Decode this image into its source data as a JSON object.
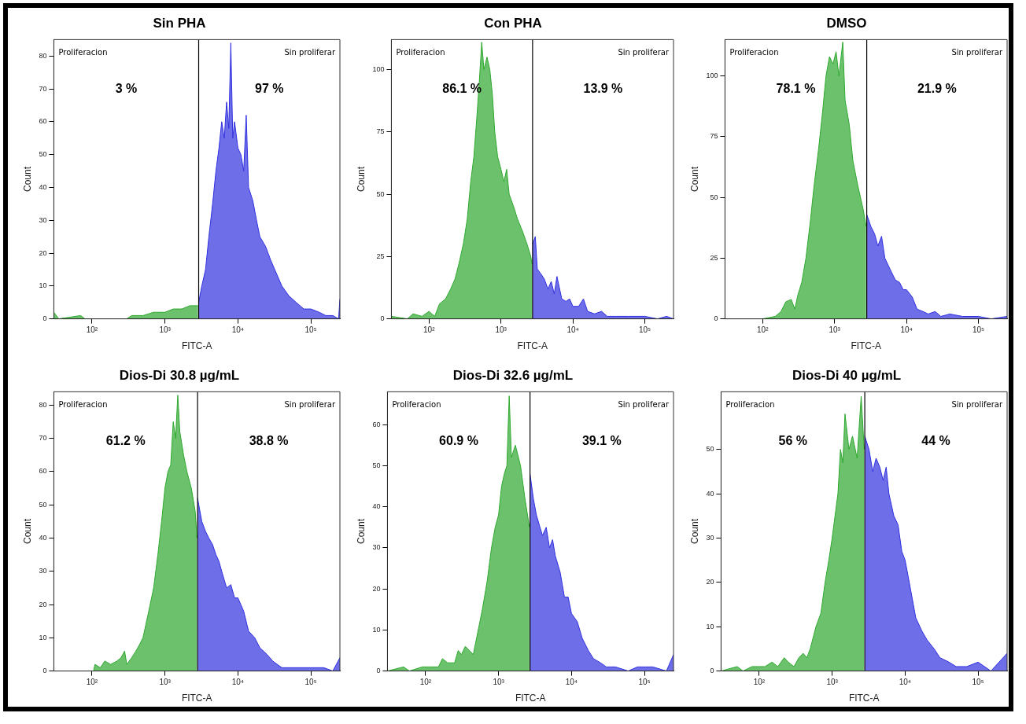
{
  "chart_data": [
    {
      "type": "area",
      "title": "Sin PHA",
      "xlabel": "FITC-A",
      "ylabel": "Count",
      "log": "x",
      "grid": false,
      "legend": false,
      "xlim": [
        30,
        250000
      ],
      "ylim": [
        0,
        85
      ],
      "xticks": [
        {
          "value": 100,
          "label": "10²"
        },
        {
          "value": 1000,
          "label": "10³"
        },
        {
          "value": 10000,
          "label": "10⁴"
        },
        {
          "value": 100000,
          "label": "10⁵"
        }
      ],
      "yticks": [
        0,
        10,
        20,
        30,
        40,
        50,
        60,
        70,
        80
      ],
      "ref_lines": [
        {
          "axis": "x",
          "value": 2900,
          "color": "#000000"
        }
      ],
      "annotations": [
        "Proliferacion",
        "Sin proliferar",
        "3 %",
        "97 %"
      ],
      "series": [
        {
          "color": "#2ea82e",
          "x": [
            30,
            35,
            70,
            80,
            300,
            350,
            500,
            700,
            1000,
            1300,
            1700,
            2200,
            2850
          ],
          "values": [
            2,
            0,
            1,
            0,
            0,
            1,
            1,
            2,
            2,
            3,
            3,
            4,
            4
          ]
        },
        {
          "color": "#3030e0",
          "x": [
            2900,
            3200,
            3600,
            4000,
            4500,
            5000,
            5500,
            6000,
            6500,
            7000,
            7500,
            8000,
            8500,
            9000,
            10000,
            11000,
            12000,
            13000,
            14000,
            16000,
            18000,
            20000,
            24000,
            28000,
            32000,
            40000,
            50000,
            63000,
            80000,
            100000,
            130000,
            160000,
            200000,
            240000,
            250000
          ],
          "values": [
            5,
            10,
            15,
            25,
            35,
            45,
            52,
            60,
            55,
            66,
            58,
            84,
            55,
            60,
            52,
            50,
            45,
            62,
            40,
            36,
            30,
            25,
            22,
            18,
            15,
            10,
            7,
            5,
            3,
            3,
            2,
            1,
            1,
            0,
            6
          ]
        }
      ]
    },
    {
      "type": "area",
      "title": "Con PHA",
      "xlabel": "FITC-A",
      "ylabel": "Count",
      "log": "x",
      "grid": false,
      "legend": false,
      "xlim": [
        30,
        250000
      ],
      "ylim": [
        0,
        112
      ],
      "xticks": [
        {
          "value": 100,
          "label": "10²"
        },
        {
          "value": 1000,
          "label": "10³"
        },
        {
          "value": 10000,
          "label": "10⁴"
        },
        {
          "value": 100000,
          "label": "10⁵"
        }
      ],
      "yticks": [
        0,
        25,
        50,
        75,
        100
      ],
      "ref_lines": [
        {
          "axis": "x",
          "value": 2750,
          "color": "#000000"
        }
      ],
      "annotations": [
        "Proliferacion",
        "Sin proliferar",
        "86.1 %",
        "13.9 %"
      ],
      "series": [
        {
          "color": "#2ea82e",
          "x": [
            30,
            50,
            60,
            80,
            100,
            120,
            140,
            170,
            200,
            230,
            260,
            300,
            340,
            380,
            420,
            460,
            500,
            540,
            580,
            640,
            700,
            760,
            820,
            900,
            1000,
            1100,
            1200,
            1300,
            1500,
            1700,
            2000,
            2300,
            2600,
            2700
          ],
          "values": [
            1,
            0,
            2,
            1,
            3,
            1,
            6,
            8,
            12,
            16,
            22,
            30,
            40,
            55,
            65,
            80,
            95,
            111,
            100,
            105,
            100,
            90,
            75,
            65,
            60,
            55,
            60,
            50,
            45,
            40,
            35,
            30,
            25,
            22
          ]
        },
        {
          "color": "#3030e0",
          "x": [
            2750,
            3000,
            3200,
            3600,
            4000,
            4500,
            5000,
            5500,
            6000,
            7000,
            8000,
            9000,
            10000,
            12000,
            14000,
            16000,
            20000,
            25000,
            30000,
            40000,
            60000,
            100000,
            150000,
            200000,
            250000
          ],
          "values": [
            30,
            33,
            20,
            18,
            16,
            12,
            15,
            10,
            17,
            8,
            7,
            8,
            5,
            5,
            8,
            3,
            2,
            3,
            1,
            1,
            1,
            1,
            0,
            1,
            0
          ]
        }
      ]
    },
    {
      "type": "area",
      "title": "DMSO",
      "xlabel": "FITC-A",
      "ylabel": "Count",
      "log": "x",
      "grid": false,
      "legend": false,
      "xlim": [
        30,
        250000
      ],
      "ylim": [
        0,
        115
      ],
      "xticks": [
        {
          "value": 100,
          "label": "10²"
        },
        {
          "value": 1000,
          "label": "10³"
        },
        {
          "value": 10000,
          "label": "10⁴"
        },
        {
          "value": 100000,
          "label": "10⁵"
        }
      ],
      "yticks": [
        0,
        25,
        50,
        75,
        100
      ],
      "ref_lines": [
        {
          "axis": "x",
          "value": 2800,
          "color": "#000000"
        }
      ],
      "annotations": [
        "Proliferacion",
        "Sin proliferar",
        "78.1 %",
        "21.9 %"
      ],
      "series": [
        {
          "color": "#2ea82e",
          "x": [
            30,
            100,
            150,
            180,
            210,
            250,
            280,
            310,
            350,
            400,
            460,
            520,
            600,
            680,
            760,
            850,
            950,
            1050,
            1150,
            1300,
            1400,
            1600,
            1800,
            2100,
            2500,
            2750
          ],
          "values": [
            0,
            0,
            1,
            3,
            7,
            8,
            4,
            10,
            15,
            25,
            40,
            55,
            70,
            85,
            100,
            108,
            105,
            110,
            100,
            114,
            90,
            80,
            65,
            55,
            45,
            38
          ]
        },
        {
          "color": "#3030e0",
          "x": [
            2800,
            3200,
            3600,
            4000,
            4500,
            5000,
            6000,
            7000,
            8000,
            9000,
            10000,
            12000,
            14000,
            17000,
            20000,
            25000,
            30000,
            40000,
            60000,
            100000,
            150000,
            250000
          ],
          "values": [
            43,
            38,
            35,
            30,
            34,
            25,
            20,
            16,
            15,
            12,
            12,
            9,
            4,
            3,
            2,
            3,
            1,
            2,
            1,
            1,
            0,
            1
          ]
        }
      ]
    },
    {
      "type": "area",
      "title": "Dios-Di 30.8 µg/mL",
      "xlabel": "FITC-A",
      "ylabel": "Count",
      "log": "x",
      "grid": false,
      "legend": false,
      "xlim": [
        30,
        250000
      ],
      "ylim": [
        0,
        84
      ],
      "xticks": [
        {
          "value": 100,
          "label": "10²"
        },
        {
          "value": 1000,
          "label": "10³"
        },
        {
          "value": 10000,
          "label": "10⁴"
        },
        {
          "value": 100000,
          "label": "10⁵"
        }
      ],
      "yticks": [
        0,
        10,
        20,
        30,
        40,
        50,
        60,
        70,
        80
      ],
      "ref_lines": [
        {
          "axis": "x",
          "value": 2800,
          "color": "#000000"
        }
      ],
      "annotations": [
        "Proliferacion",
        "Sin proliferar",
        "61.2 %",
        "38.8 %"
      ],
      "series": [
        {
          "color": "#2ea82e",
          "x": [
            30,
            105,
            110,
            130,
            150,
            180,
            220,
            250,
            280,
            300,
            350,
            400,
            450,
            500,
            600,
            700,
            800,
            900,
            1000,
            1100,
            1200,
            1300,
            1400,
            1500,
            1600,
            1800,
            2000,
            2300,
            2600,
            2750
          ],
          "values": [
            0,
            0,
            2,
            1,
            3,
            2,
            3,
            4,
            6,
            2,
            4,
            6,
            8,
            10,
            18,
            25,
            35,
            45,
            55,
            60,
            62,
            75,
            70,
            83,
            72,
            65,
            60,
            55,
            48,
            40
          ]
        },
        {
          "color": "#3030e0",
          "x": [
            2800,
            3200,
            3600,
            4000,
            4500,
            5000,
            5500,
            6000,
            7000,
            8000,
            9000,
            10000,
            12000,
            14000,
            17000,
            20000,
            25000,
            30000,
            40000,
            50000,
            70000,
            100000,
            150000,
            200000,
            250000
          ],
          "values": [
            52,
            45,
            42,
            40,
            38,
            35,
            33,
            30,
            25,
            26,
            22,
            22,
            18,
            12,
            10,
            7,
            5,
            3,
            1,
            1,
            1,
            1,
            1,
            0,
            4
          ]
        }
      ]
    },
    {
      "type": "area",
      "title": "Dios-Di 32.6 µg/mL",
      "xlabel": "FITC-A",
      "ylabel": "Count",
      "log": "x",
      "grid": false,
      "legend": false,
      "xlim": [
        30,
        250000
      ],
      "ylim": [
        0,
        68
      ],
      "xticks": [
        {
          "value": 100,
          "label": "10²"
        },
        {
          "value": 1000,
          "label": "10³"
        },
        {
          "value": 10000,
          "label": "10⁴"
        },
        {
          "value": 100000,
          "label": "10⁵"
        }
      ],
      "yticks": [
        0,
        10,
        20,
        30,
        40,
        50,
        60
      ],
      "ref_lines": [
        {
          "axis": "x",
          "value": 2700,
          "color": "#000000"
        }
      ],
      "annotations": [
        "Proliferacion",
        "Sin proliferar",
        "60.9 %",
        "39.1 %"
      ],
      "series": [
        {
          "color": "#2ea82e",
          "x": [
            30,
            50,
            60,
            90,
            110,
            150,
            170,
            200,
            250,
            280,
            310,
            350,
            400,
            450,
            500,
            600,
            700,
            800,
            900,
            1000,
            1100,
            1200,
            1300,
            1400,
            1500,
            1700,
            2000,
            2300,
            2650
          ],
          "values": [
            0,
            1,
            0,
            1,
            1,
            1,
            3,
            2,
            2,
            5,
            4,
            6,
            5,
            4,
            8,
            15,
            22,
            30,
            35,
            38,
            45,
            48,
            50,
            67,
            52,
            55,
            50,
            42,
            35
          ]
        },
        {
          "color": "#3030e0",
          "x": [
            2700,
            3000,
            3300,
            3700,
            4000,
            4500,
            5000,
            5500,
            6000,
            7000,
            8000,
            9000,
            10000,
            12000,
            14000,
            17000,
            20000,
            25000,
            30000,
            40000,
            60000,
            80000,
            130000,
            200000,
            250000
          ],
          "values": [
            48,
            42,
            38,
            35,
            33,
            35,
            30,
            32,
            28,
            24,
            18,
            18,
            14,
            12,
            8,
            5,
            3,
            2,
            1,
            1,
            0,
            1,
            1,
            0,
            4
          ]
        }
      ]
    },
    {
      "type": "area",
      "title": "Dios-Di 40 µg/mL",
      "xlabel": "FITC-A",
      "ylabel": "Count",
      "log": "x",
      "grid": false,
      "legend": false,
      "xlim": [
        30,
        250000
      ],
      "ylim": [
        0,
        63
      ],
      "xticks": [
        {
          "value": 100,
          "label": "10²"
        },
        {
          "value": 1000,
          "label": "10³"
        },
        {
          "value": 10000,
          "label": "10⁴"
        },
        {
          "value": 100000,
          "label": "10⁵"
        }
      ],
      "yticks": [
        0,
        10,
        20,
        30,
        40,
        50
      ],
      "ref_lines": [
        {
          "axis": "x",
          "value": 2800,
          "color": "#000000"
        }
      ],
      "annotations": [
        "Proliferacion",
        "Sin proliferar",
        "56 %",
        "44 %"
      ],
      "series": [
        {
          "color": "#2ea82e",
          "x": [
            30,
            50,
            60,
            80,
            120,
            150,
            180,
            220,
            250,
            300,
            350,
            400,
            450,
            500,
            600,
            700,
            800,
            900,
            1000,
            1200,
            1300,
            1400,
            1500,
            1700,
            1900,
            2200,
            2500,
            2750
          ],
          "values": [
            0,
            1,
            0,
            1,
            1,
            2,
            1,
            3,
            2,
            1,
            3,
            4,
            3,
            5,
            10,
            13,
            20,
            25,
            30,
            40,
            50,
            47,
            58,
            50,
            53,
            48,
            62,
            50
          ]
        },
        {
          "color": "#3030e0",
          "x": [
            2800,
            3200,
            3600,
            4000,
            4500,
            5000,
            5500,
            6000,
            7000,
            8000,
            9000,
            10000,
            12000,
            14000,
            17000,
            20000,
            25000,
            30000,
            40000,
            50000,
            70000,
            100000,
            150000,
            250000
          ],
          "values": [
            53,
            50,
            45,
            48,
            46,
            43,
            46,
            40,
            35,
            33,
            27,
            25,
            18,
            12,
            9,
            7,
            5,
            3,
            2,
            1,
            1,
            2,
            0,
            4
          ]
        }
      ]
    }
  ]
}
